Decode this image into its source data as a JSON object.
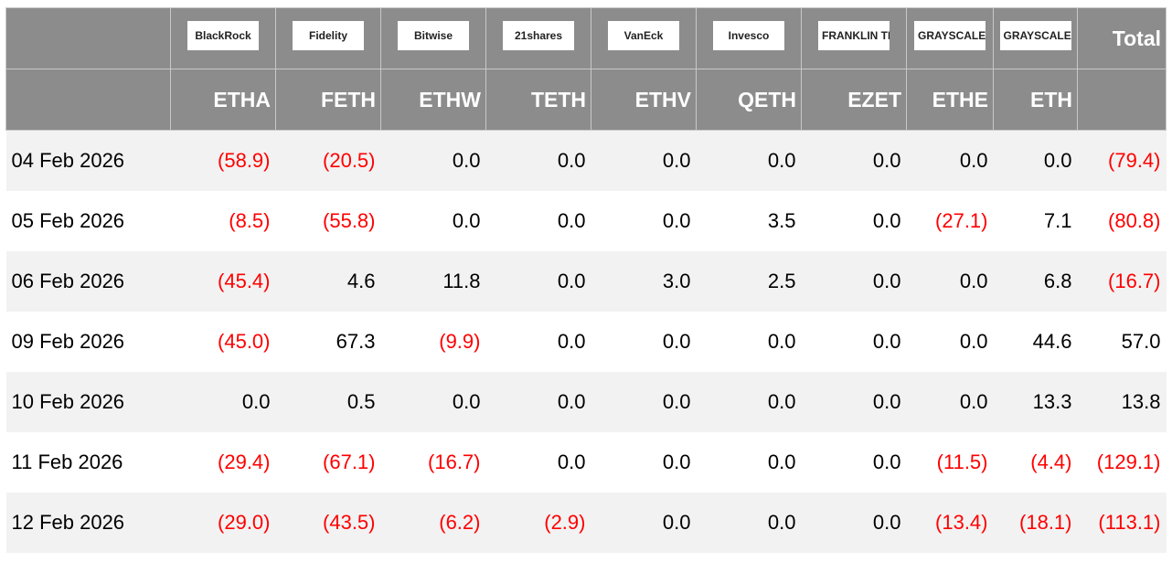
{
  "header": {
    "columns": [
      {
        "logo": "BlackRock",
        "ticker": "ETHA"
      },
      {
        "logo": "Fidelity",
        "ticker": "FETH"
      },
      {
        "logo": "Bitwise",
        "ticker": "ETHW"
      },
      {
        "logo": "21shares",
        "ticker": "TETH"
      },
      {
        "logo": "VanEck",
        "ticker": "ETHV"
      },
      {
        "logo": "Invesco",
        "ticker": "QETH"
      },
      {
        "logo": "FRANKLIN TEMPLETON",
        "ticker": "EZET"
      },
      {
        "logo": "GRAYSCALE",
        "ticker": "ETHE"
      },
      {
        "logo": "GRAYSCALE",
        "ticker": "ETH"
      }
    ],
    "total": "Total"
  },
  "table": {
    "rows": [
      {
        "date": "04 Feb 2026",
        "cells": [
          "(58.9)",
          "(20.5)",
          "0.0",
          "0.0",
          "0.0",
          "0.0",
          "0.0",
          "0.0",
          "0.0",
          "(79.4)"
        ]
      },
      {
        "date": "05 Feb 2026",
        "cells": [
          "(8.5)",
          "(55.8)",
          "0.0",
          "0.0",
          "0.0",
          "3.5",
          "0.0",
          "(27.1)",
          "7.1",
          "(80.8)"
        ]
      },
      {
        "date": "06 Feb 2026",
        "cells": [
          "(45.4)",
          "4.6",
          "11.8",
          "0.0",
          "3.0",
          "2.5",
          "0.0",
          "0.0",
          "6.8",
          "(16.7)"
        ]
      },
      {
        "date": "09 Feb 2026",
        "cells": [
          "(45.0)",
          "67.3",
          "(9.9)",
          "0.0",
          "0.0",
          "0.0",
          "0.0",
          "0.0",
          "44.6",
          "57.0"
        ]
      },
      {
        "date": "10 Feb 2026",
        "cells": [
          "0.0",
          "0.5",
          "0.0",
          "0.0",
          "0.0",
          "0.0",
          "0.0",
          "0.0",
          "13.3",
          "13.8"
        ]
      },
      {
        "date": "11 Feb 2026",
        "cells": [
          "(29.4)",
          "(67.1)",
          "(16.7)",
          "0.0",
          "0.0",
          "0.0",
          "0.0",
          "(11.5)",
          "(4.4)",
          "(129.1)"
        ]
      },
      {
        "date": "12 Feb 2026",
        "cells": [
          "(29.0)",
          "(43.5)",
          "(6.2)",
          "(2.9)",
          "0.0",
          "0.0",
          "0.0",
          "(13.4)",
          "(18.1)",
          "(113.1)"
        ]
      }
    ]
  }
}
